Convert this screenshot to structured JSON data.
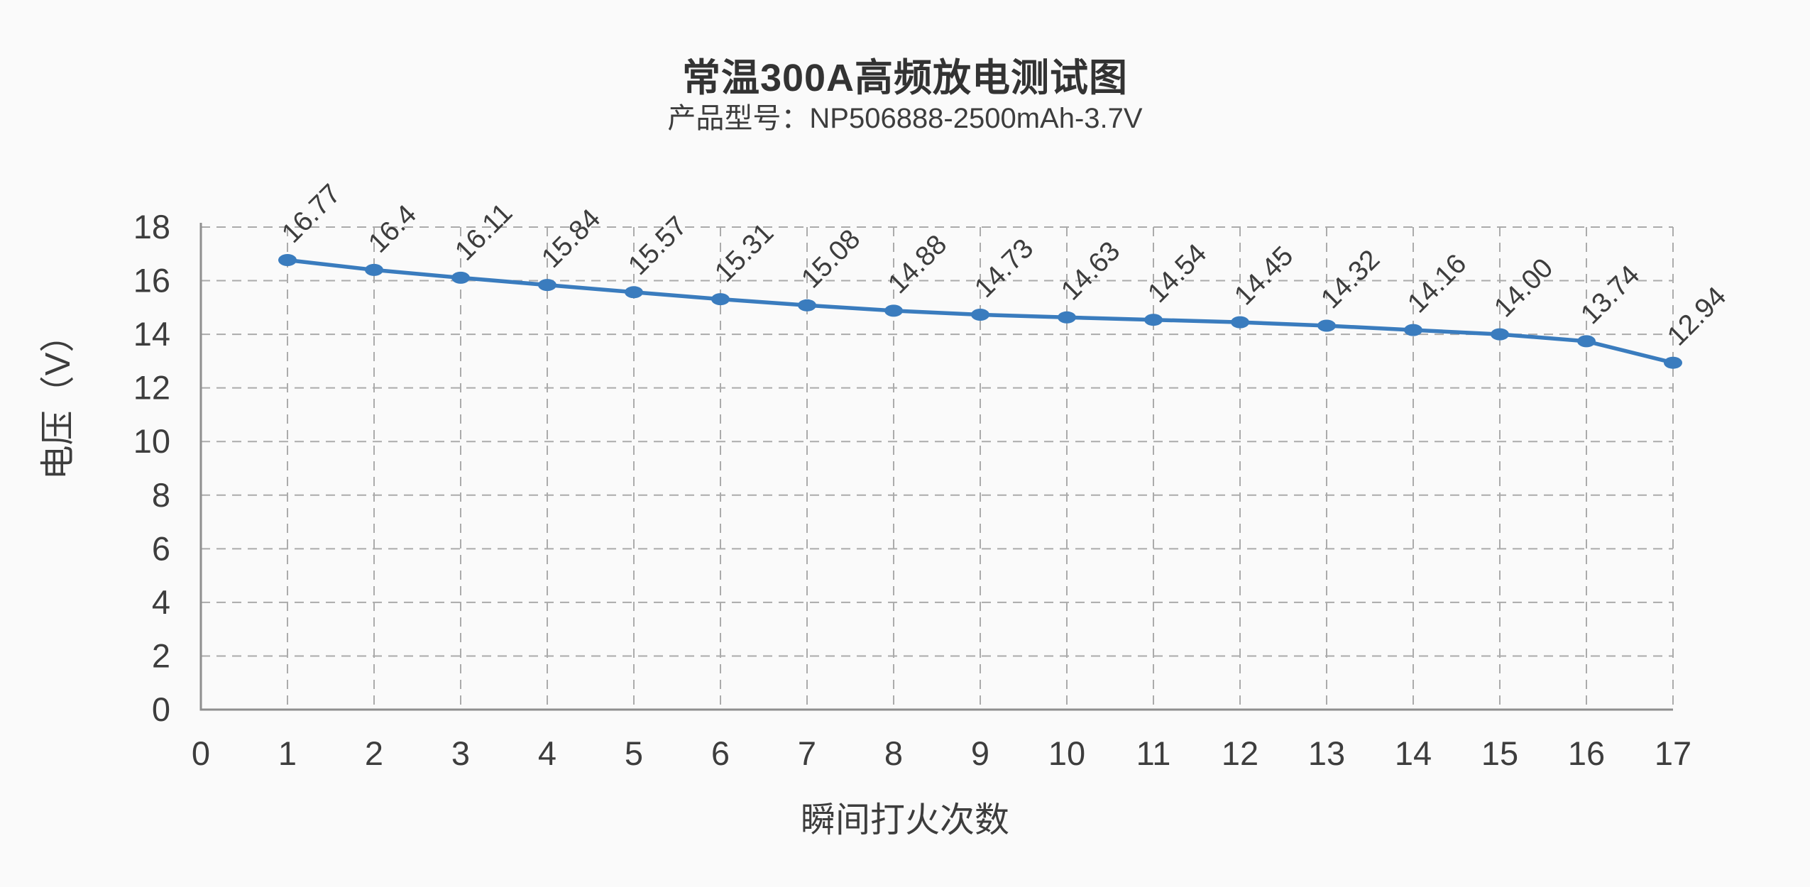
{
  "chart_data": {
    "type": "line",
    "title": "常温300A高频放电测试图",
    "subtitle": "产品型号：NP506888-2500mAh-3.7V",
    "xlabel": "瞬间打火次数",
    "ylabel": "电压（V）",
    "x": [
      1,
      2,
      3,
      4,
      5,
      6,
      7,
      8,
      9,
      10,
      11,
      12,
      13,
      14,
      15,
      16,
      17
    ],
    "values": [
      16.77,
      16.4,
      16.11,
      15.84,
      15.57,
      15.31,
      15.08,
      14.88,
      14.73,
      14.63,
      14.54,
      14.45,
      14.32,
      14.16,
      14.0,
      13.74,
      12.94
    ],
    "point_labels": [
      "16.77",
      "16.4",
      "16.11",
      "15.84",
      "15.57",
      "15.31",
      "15.08",
      "14.88",
      "14.73",
      "14.63",
      "14.54",
      "14.45",
      "14.32",
      "14.16",
      "14.00",
      "13.74",
      "12.94"
    ],
    "xlim": [
      0,
      17
    ],
    "ylim": [
      0,
      18
    ],
    "x_ticks": [
      0,
      1,
      2,
      3,
      4,
      5,
      6,
      7,
      8,
      9,
      10,
      11,
      12,
      13,
      14,
      15,
      16,
      17
    ],
    "y_ticks": [
      0,
      2,
      4,
      6,
      8,
      10,
      12,
      14,
      16,
      18
    ],
    "grid": true,
    "grid_style": "dashed",
    "legend_position": "none",
    "colors": {
      "line": "#3a7cbe",
      "marker": "#3a7cbe",
      "grid": "#ababab",
      "axis": "#8f8f8f",
      "text": "#3d3d3d",
      "title": "#333333",
      "background": "#fafafa"
    }
  }
}
